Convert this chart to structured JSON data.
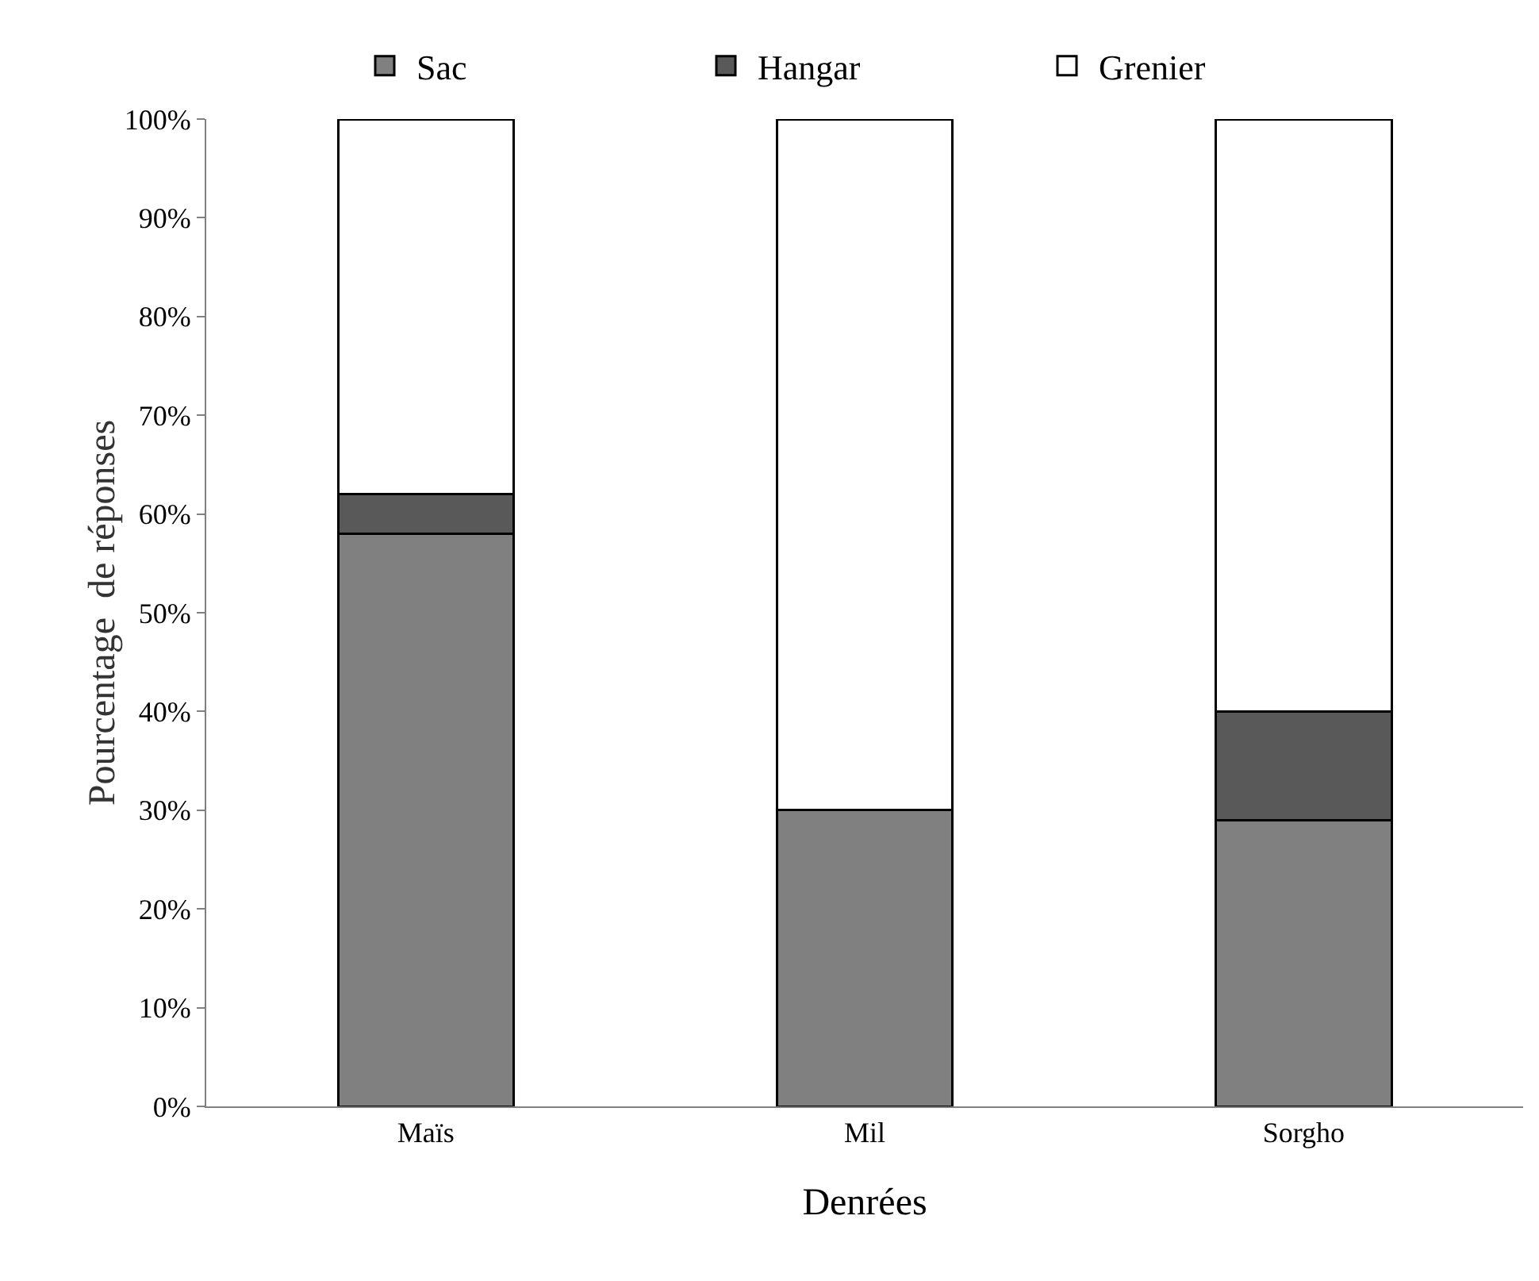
{
  "chart_data": {
    "type": "bar",
    "stacked": true,
    "xlabel": "Denrées",
    "ylabel": "Pourcentage  de réponses",
    "categories": [
      "Maïs",
      "Mil",
      "Sorgho"
    ],
    "series": [
      {
        "name": "Sac",
        "color": "#808080",
        "values": [
          58,
          30,
          29
        ]
      },
      {
        "name": "Hangar",
        "color": "#595959",
        "values": [
          4,
          0,
          11
        ]
      },
      {
        "name": "Grenier",
        "color": "#ffffff",
        "values": [
          38,
          70,
          60
        ]
      }
    ],
    "ylim": [
      0,
      100
    ],
    "yticks": [
      {
        "value": 0,
        "label": "0%"
      },
      {
        "value": 10,
        "label": "10%"
      },
      {
        "value": 20,
        "label": "20%"
      },
      {
        "value": 30,
        "label": "30%"
      },
      {
        "value": 40,
        "label": "40%"
      },
      {
        "value": 50,
        "label": "50%"
      },
      {
        "value": 60,
        "label": "60%"
      },
      {
        "value": 70,
        "label": "70%"
      },
      {
        "value": 80,
        "label": "80%"
      },
      {
        "value": 90,
        "label": "90%"
      },
      {
        "value": 100,
        "label": "100%"
      }
    ],
    "grid": false,
    "legend": "top"
  }
}
